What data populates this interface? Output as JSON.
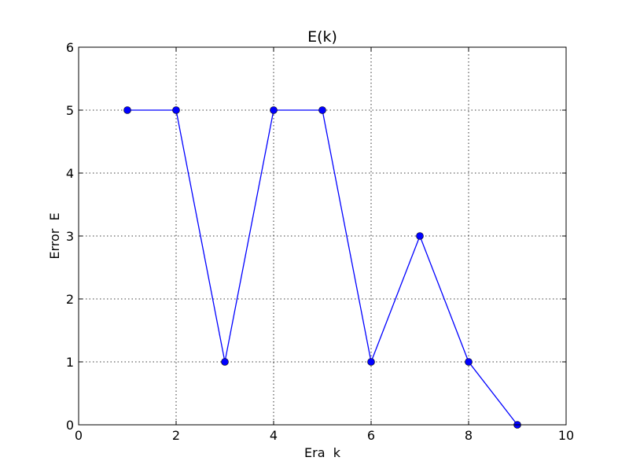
{
  "chart_data": {
    "type": "line",
    "title": "E(k)",
    "xlabel": "Era  k",
    "ylabel": "Error  E",
    "xlim": [
      0,
      10
    ],
    "ylim": [
      0,
      6
    ],
    "xticks": [
      0,
      2,
      4,
      6,
      8,
      10
    ],
    "yticks": [
      0,
      1,
      2,
      3,
      4,
      5,
      6
    ],
    "grid": true,
    "series": [
      {
        "x": [
          1,
          2,
          3,
          4,
          5,
          6,
          7,
          8,
          9
        ],
        "y": [
          5,
          5,
          1,
          5,
          5,
          1,
          3,
          1,
          0
        ],
        "color": "#0000ff",
        "marker": "circle"
      }
    ]
  }
}
